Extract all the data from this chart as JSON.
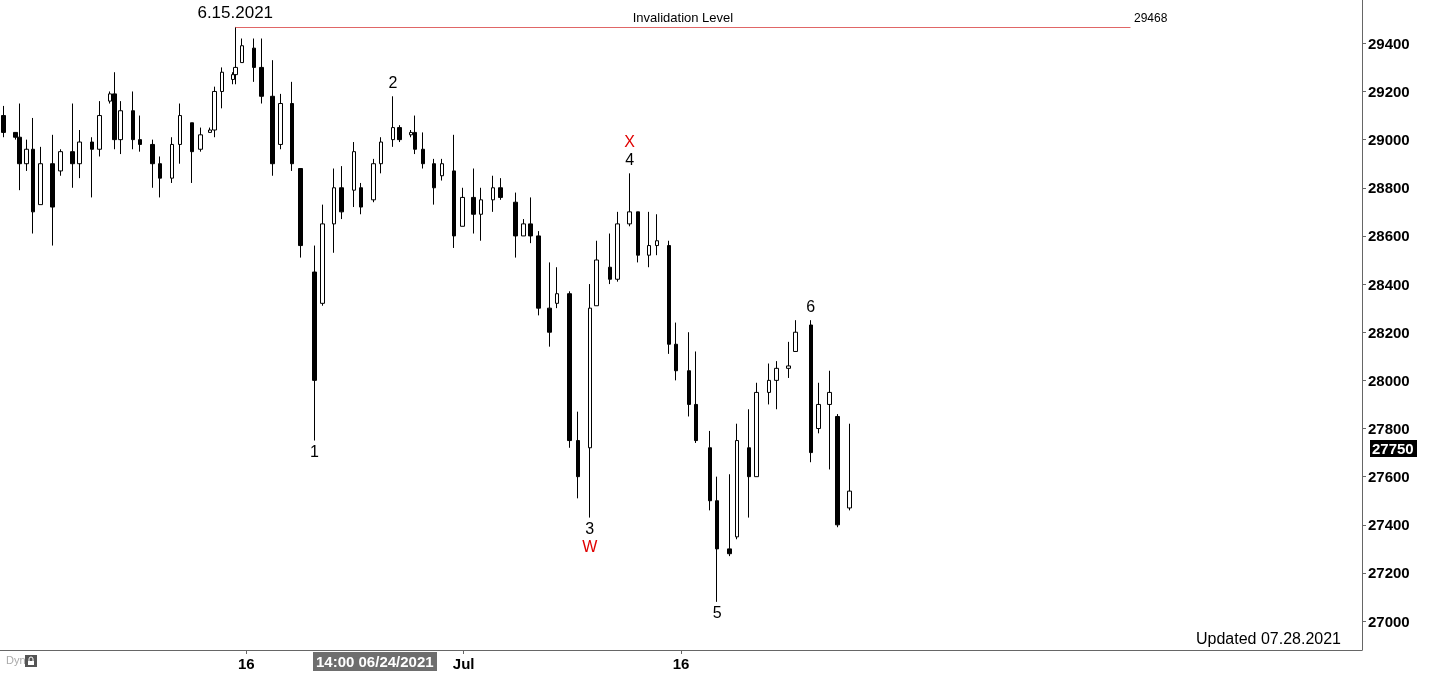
{
  "chart_data": {
    "type": "candlestick",
    "x": [
      "2021-05-30T06:00",
      "2021-05-31T02:00",
      "2021-05-31T08:00",
      "2021-05-31T20:00",
      "2021-06-01T07:00",
      "2021-06-01T19:00",
      "2021-06-02T15:00",
      "2021-06-03T04:00",
      "2021-06-04T00:00",
      "2021-06-04T12:00",
      "2021-06-05T08:00",
      "2021-06-05T21:00",
      "2021-06-06T14:00",
      "2021-06-06T22:00",
      "2021-06-07T08:00",
      "2021-06-08T04:00",
      "2021-06-08T16:00",
      "2021-06-09T13:00",
      "2021-06-10T01:00",
      "2021-06-10T21:00",
      "2021-06-11T10:00",
      "2021-06-12T06:00",
      "2021-06-12T20:00",
      "2021-06-13T12:00",
      "2021-06-13T19:00",
      "2021-06-14T08:00",
      "2021-06-15T02:00",
      "2021-06-15T06:00",
      "2021-06-15T17:00",
      "2021-06-16T13:00",
      "2021-06-17T01:00",
      "2021-06-17T19:00",
      "2021-06-18T09:00",
      "2021-06-19T04:00",
      "2021-06-19T18:00",
      "2021-06-20T17:00",
      "2021-06-21T06:00",
      "2021-06-22T01:00",
      "2021-06-22T14:00",
      "2021-06-23T10:00",
      "2021-06-23T22:00",
      "2021-06-24T19:00",
      "2021-06-25T07:00",
      "2021-06-26T03:00",
      "2021-06-26T14:00",
      "2021-06-27T09:00",
      "2021-06-27T15:00",
      "2021-06-28T05:00",
      "2021-06-28T23:00",
      "2021-06-29T12:00",
      "2021-06-30T08:00",
      "2021-06-30T22:00",
      "2021-07-01T16:00",
      "2021-07-02T05:00",
      "2021-07-03T01:00",
      "2021-07-03T13:00",
      "2021-07-04T14:00",
      "2021-07-05T03:00",
      "2021-07-05T15:00",
      "2021-07-06T04:00",
      "2021-07-06T22:00",
      "2021-07-07T11:00",
      "2021-07-08T07:00",
      "2021-07-08T21:00",
      "2021-07-09T17:00",
      "2021-07-10T04:00",
      "2021-07-11T02:00",
      "2021-07-11T15:00",
      "2021-07-12T11:00",
      "2021-07-13T01:00",
      "2021-07-13T19:00",
      "2021-07-14T08:00",
      "2021-07-15T04:00",
      "2021-07-15T16:00",
      "2021-07-16T13:00",
      "2021-07-17T01:00",
      "2021-07-18T00:00",
      "2021-07-18T12:00",
      "2021-07-19T08:00",
      "2021-07-19T21:00",
      "2021-07-20T17:00",
      "2021-07-21T05:00",
      "2021-07-22T02:00",
      "2021-07-22T14:00",
      "2021-07-23T10:00",
      "2021-07-23T22:00",
      "2021-07-24T23:00",
      "2021-07-25T12:00",
      "2021-07-26T06:00",
      "2021-07-26T19:00",
      "2021-07-27T15:00"
    ],
    "ohlc": [
      [
        29100,
        29140,
        29010,
        29030
      ],
      [
        29030,
        29030,
        29000,
        29010
      ],
      [
        29010,
        29150,
        28790,
        28900
      ],
      [
        28900,
        29000,
        28870,
        28960
      ],
      [
        28960,
        29090,
        28610,
        28700
      ],
      [
        28730,
        28970,
        28730,
        28900
      ],
      [
        28900,
        29020,
        28560,
        28720
      ],
      [
        28870,
        28960,
        28850,
        28950
      ],
      [
        28950,
        29150,
        28800,
        28900
      ],
      [
        28900,
        29040,
        28840,
        28990
      ],
      [
        28990,
        29010,
        28760,
        28960
      ],
      [
        28960,
        29160,
        28930,
        29100
      ],
      [
        29160,
        29200,
        29150,
        29190
      ],
      [
        29190,
        29280,
        28960,
        29000
      ],
      [
        29000,
        29160,
        28940,
        29120
      ],
      [
        29120,
        29200,
        28960,
        29000
      ],
      [
        29000,
        29100,
        28950,
        28980
      ],
      [
        28980,
        29000,
        28800,
        28900
      ],
      [
        28900,
        28930,
        28760,
        28840
      ],
      [
        28840,
        29010,
        28820,
        28980
      ],
      [
        28980,
        29150,
        28900,
        29100
      ],
      [
        29070,
        29070,
        28820,
        28950
      ],
      [
        28960,
        29050,
        28950,
        29020
      ],
      [
        29030,
        29050,
        29030,
        29040
      ],
      [
        29040,
        29220,
        29010,
        29200
      ],
      [
        29200,
        29300,
        29130,
        29280
      ],
      [
        29250,
        29280,
        29230,
        29270
      ],
      [
        29270,
        29468,
        29230,
        29300
      ],
      [
        29320,
        29420,
        29320,
        29390
      ],
      [
        29380,
        29420,
        29240,
        29300
      ],
      [
        29300,
        29420,
        29150,
        29180
      ],
      [
        29180,
        29330,
        28850,
        28900
      ],
      [
        28980,
        29190,
        28960,
        29150
      ],
      [
        29150,
        29240,
        28870,
        28900
      ],
      [
        28880,
        28880,
        28510,
        28560
      ],
      [
        28450,
        28560,
        27750,
        28000
      ],
      [
        28320,
        28730,
        28310,
        28650
      ],
      [
        28650,
        28880,
        28530,
        28800
      ],
      [
        28800,
        28890,
        28670,
        28700
      ],
      [
        28790,
        28990,
        28720,
        28950
      ],
      [
        28800,
        28820,
        28690,
        28720
      ],
      [
        28750,
        28920,
        28740,
        28900
      ],
      [
        28900,
        29010,
        28860,
        28990
      ],
      [
        29000,
        29180,
        28970,
        29050
      ],
      [
        29050,
        29060,
        28990,
        29000
      ],
      [
        29020,
        29040,
        29010,
        29030
      ],
      [
        29030,
        29100,
        28940,
        28960
      ],
      [
        28960,
        29030,
        28880,
        28900
      ],
      [
        28900,
        28920,
        28730,
        28800
      ],
      [
        28850,
        28920,
        28830,
        28900
      ],
      [
        28870,
        29020,
        28550,
        28600
      ],
      [
        28640,
        28800,
        28640,
        28760
      ],
      [
        28760,
        28880,
        28610,
        28690
      ],
      [
        28690,
        28800,
        28580,
        28750
      ],
      [
        28750,
        28850,
        28700,
        28800
      ],
      [
        28800,
        28840,
        28750,
        28760
      ],
      [
        28740,
        28780,
        28510,
        28600
      ],
      [
        28600,
        28670,
        28600,
        28650
      ],
      [
        28650,
        28760,
        28570,
        28600
      ],
      [
        28600,
        28620,
        28270,
        28300
      ],
      [
        28300,
        28490,
        28140,
        28200
      ],
      [
        28320,
        28470,
        28300,
        28360
      ],
      [
        28360,
        28370,
        27720,
        27750
      ],
      [
        27750,
        27870,
        27510,
        27600
      ],
      [
        27720,
        28400,
        27430,
        28300
      ],
      [
        28310,
        28580,
        28310,
        28500
      ],
      [
        28470,
        28610,
        28400,
        28420
      ],
      [
        28420,
        28700,
        28410,
        28650
      ],
      [
        28650,
        28860,
        28640,
        28700
      ],
      [
        28700,
        28700,
        28490,
        28520
      ],
      [
        28520,
        28700,
        28470,
        28560
      ],
      [
        28560,
        28690,
        28520,
        28580
      ],
      [
        28560,
        28580,
        28110,
        28150
      ],
      [
        28150,
        28240,
        28000,
        28040
      ],
      [
        28040,
        28200,
        27850,
        27900
      ],
      [
        27900,
        28120,
        27740,
        27750
      ],
      [
        27720,
        27790,
        27460,
        27500
      ],
      [
        27500,
        27600,
        27080,
        27300
      ],
      [
        27300,
        27610,
        27270,
        27280
      ],
      [
        27350,
        27820,
        27340,
        27750
      ],
      [
        27720,
        27880,
        27430,
        27600
      ],
      [
        27600,
        27990,
        27600,
        27950
      ],
      [
        27950,
        28070,
        27900,
        28000
      ],
      [
        28000,
        28080,
        27880,
        28050
      ],
      [
        28050,
        28160,
        28010,
        28060
      ],
      [
        28120,
        28250,
        28120,
        28200
      ],
      [
        28230,
        28250,
        27660,
        27700
      ],
      [
        27800,
        27990,
        27780,
        27900
      ],
      [
        27900,
        28040,
        27630,
        27950
      ],
      [
        27850,
        27860,
        27390,
        27400
      ],
      [
        27470,
        27820,
        27460,
        27540
      ]
    ],
    "color": "#000000",
    "xlim": [
      "2021-05-30",
      "2021-09-01"
    ],
    "xticks": [
      {
        "value": "2021-06-16",
        "label": "16"
      },
      {
        "value": "2021-07-01",
        "label": "Jul"
      },
      {
        "value": "2021-07-16",
        "label": "16"
      }
    ],
    "ylim": [
      26880,
      29580
    ],
    "yticks": [
      27000,
      27200,
      27400,
      27600,
      27800,
      28000,
      28200,
      28400,
      28600,
      28800,
      29000,
      29200,
      29400
    ],
    "grid": false,
    "ref_lines": [
      {
        "axis": "y",
        "value": 29468,
        "label": "Invalidation Level",
        "color": "#e06666"
      }
    ],
    "annotations": [
      {
        "text": "6.15.2021",
        "x": "2021-06-15T06:00",
        "y": 29468
      },
      {
        "text": "1",
        "x": "2021-06-20T17:00",
        "y": 27750
      },
      {
        "text": "2",
        "x": "2021-06-26T03:00",
        "y": 29180
      },
      {
        "text": "3",
        "x": "2021-07-09T17:00",
        "y": 27430
      },
      {
        "text": "W",
        "x": "2021-07-09T17:00",
        "y": 27430
      },
      {
        "text": "4",
        "x": "2021-07-12T11:00",
        "y": 28860
      },
      {
        "text": "X",
        "x": "2021-07-12T11:00",
        "y": 28860
      },
      {
        "text": "5",
        "x": "2021-07-18T12:00",
        "y": 27080
      },
      {
        "text": "6",
        "x": "2021-07-24T23:00",
        "y": 28250
      },
      "29468",
      "27750",
      "Dyn",
      "14:00 06/24/2021",
      "Updated 07.28.2021"
    ]
  }
}
